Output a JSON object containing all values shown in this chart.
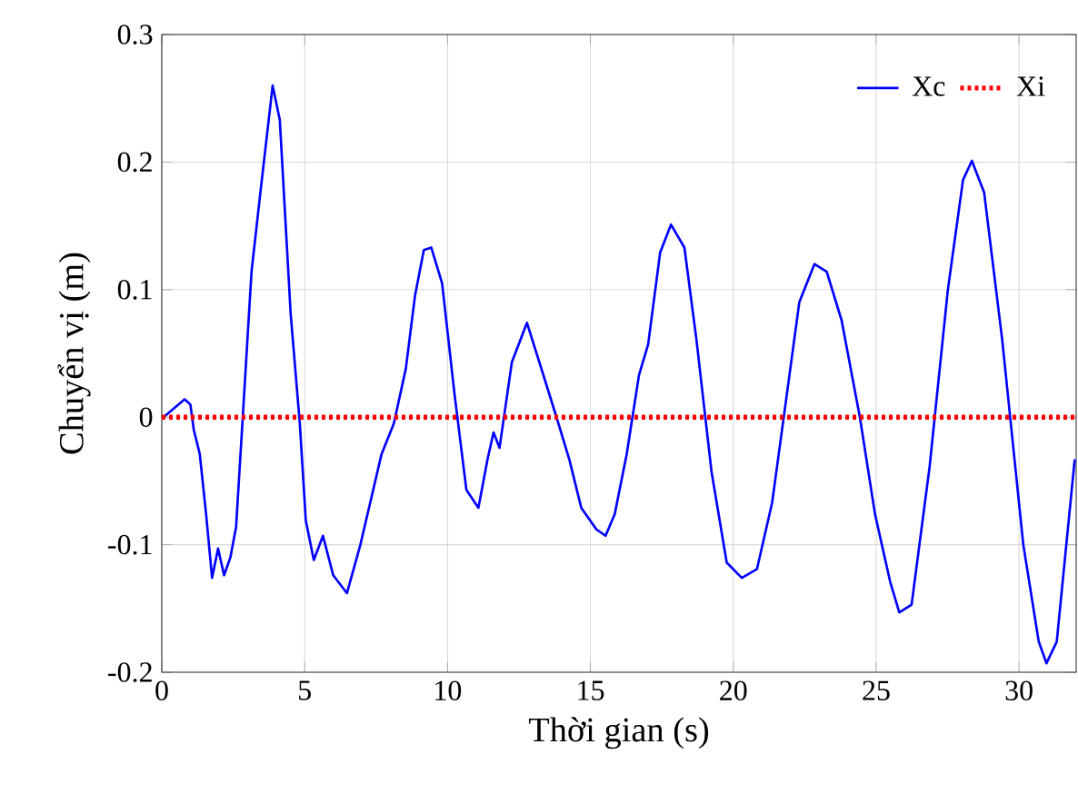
{
  "chart_data": {
    "type": "line",
    "xlabel": "Thời gian (s)",
    "ylabel": "Chuyển vị (m)",
    "xlim": [
      0,
      32
    ],
    "ylim": [
      -0.2,
      0.3
    ],
    "xticks": [
      0,
      5,
      10,
      15,
      20,
      25,
      30
    ],
    "yticks": [
      -0.2,
      -0.1,
      0,
      0.1,
      0.2,
      0.3
    ],
    "grid": true,
    "legend": "top right",
    "marker": "none",
    "series": [
      {
        "name": "Xc",
        "color": "#0000ff",
        "line_style": "solid",
        "x": [
          0.06,
          0.8,
          1.0,
          1.12,
          1.33,
          1.55,
          1.76,
          1.97,
          2.18,
          2.4,
          2.6,
          2.82,
          3.14,
          3.45,
          3.88,
          4.13,
          4.51,
          4.83,
          5.04,
          5.32,
          5.64,
          6.0,
          6.48,
          6.95,
          7.69,
          8.12,
          8.54,
          8.86,
          9.17,
          9.43,
          9.81,
          10.24,
          10.66,
          11.08,
          11.4,
          11.61,
          11.82,
          12.25,
          12.78,
          13.41,
          13.84,
          14.26,
          14.68,
          15.21,
          15.53,
          15.85,
          16.27,
          16.7,
          17.02,
          17.44,
          17.82,
          18.29,
          18.71,
          19.24,
          19.77,
          20.3,
          20.83,
          21.36,
          21.79,
          22.31,
          22.84,
          23.27,
          23.79,
          24.43,
          24.96,
          25.49,
          25.81,
          26.24,
          26.87,
          27.51,
          28.04,
          28.35,
          28.78,
          29.41,
          30.15,
          30.69,
          30.96,
          31.32,
          31.95
        ],
        "values": [
          0,
          0.014,
          0.01,
          -0.01,
          -0.029,
          -0.076,
          -0.126,
          -0.103,
          -0.124,
          -0.11,
          -0.086,
          -0.005,
          0.114,
          0.176,
          0.26,
          0.233,
          0.081,
          -0.005,
          -0.081,
          -0.112,
          -0.093,
          -0.124,
          -0.138,
          -0.1,
          -0.029,
          -0.005,
          0.038,
          0.095,
          0.131,
          0.133,
          0.105,
          0.019,
          -0.057,
          -0.071,
          -0.033,
          -0.012,
          -0.024,
          0.043,
          0.074,
          0.029,
          -0.002,
          -0.033,
          -0.071,
          -0.088,
          -0.093,
          -0.076,
          -0.029,
          0.033,
          0.057,
          0.129,
          0.151,
          0.133,
          0.061,
          -0.043,
          -0.114,
          -0.126,
          -0.119,
          -0.067,
          0.004,
          0.09,
          0.12,
          0.114,
          0.076,
          0,
          -0.076,
          -0.129,
          -0.153,
          -0.147,
          -0.039,
          0.1,
          0.186,
          0.201,
          0.176,
          0.061,
          -0.1,
          -0.176,
          -0.193,
          -0.176,
          -0.033
        ]
      },
      {
        "name": "Xi",
        "color": "#ff0000",
        "line_style": "dotted",
        "x": [
          0,
          8,
          16,
          24,
          32
        ],
        "values": [
          0,
          0,
          0,
          0,
          0
        ]
      }
    ]
  }
}
